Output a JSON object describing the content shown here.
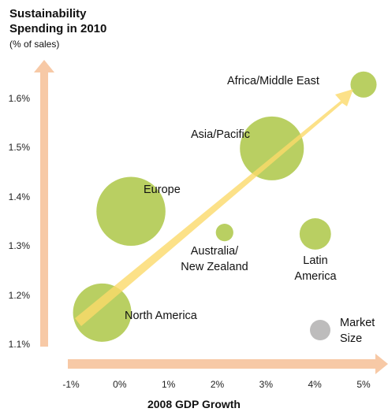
{
  "chart_data": {
    "type": "bubble",
    "title": "Sustainability\nSpending in 2010",
    "subtitle": "(% of sales)",
    "x_label": "2008 GDP Growth",
    "color": "#b3cb55",
    "points": [
      {
        "name": "North America",
        "x": -0.36,
        "y": 1.166,
        "size": 100
      },
      {
        "name": "Europe",
        "x": 0.23,
        "y": 1.372,
        "size": 140
      },
      {
        "name": "Asia/Pacific",
        "x": 3.12,
        "y": 1.5,
        "size": 120
      },
      {
        "name": "Africa/Middle East",
        "x": 5.0,
        "y": 1.63,
        "size": 20
      },
      {
        "name": "Australia/\nNew Zealand",
        "x": 2.15,
        "y": 1.329,
        "size": 9
      },
      {
        "name": "Latin\nAmerica",
        "x": 4.01,
        "y": 1.326,
        "size": 29
      }
    ],
    "legend_label": "Market\nSize",
    "xlim": [
      -1,
      5
    ],
    "ylim": [
      1.1,
      1.6
    ],
    "xticks": [
      {
        "value": -1,
        "label": "-1%"
      },
      {
        "value": 0,
        "label": "0%"
      },
      {
        "value": 1,
        "label": "1%"
      },
      {
        "value": 2,
        "label": "2%"
      },
      {
        "value": 3,
        "label": "3%"
      },
      {
        "value": 4,
        "label": "4%"
      },
      {
        "value": 5,
        "label": "5%"
      }
    ],
    "yticks": [
      {
        "value": 1.1,
        "label": "1.1%"
      },
      {
        "value": 1.2,
        "label": "1.2%"
      },
      {
        "value": 1.3,
        "label": "1.3%"
      },
      {
        "value": 1.4,
        "label": "1.4%"
      },
      {
        "value": 1.5,
        "label": "1.5%"
      },
      {
        "value": 1.6,
        "label": "1.6%"
      }
    ]
  }
}
